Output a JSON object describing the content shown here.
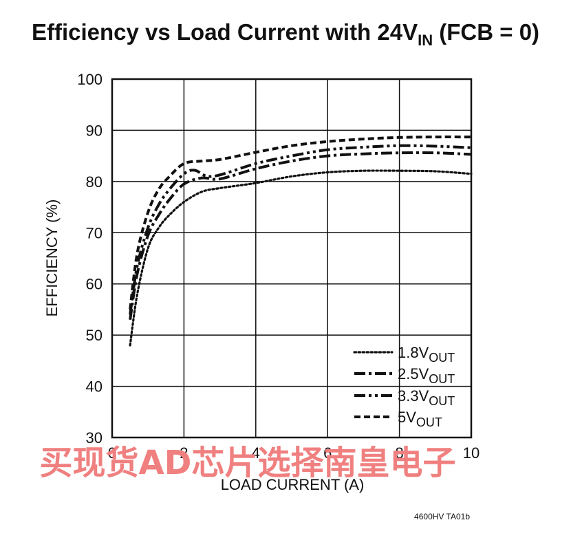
{
  "chart_data": {
    "type": "line",
    "title": "Efficiency vs Load Current with 24V",
    "title_subscript": "IN",
    "title_suffix": " (FCB = 0)",
    "xlabel": "LOAD CURRENT (A)",
    "ylabel": "EFFICIENCY (%)",
    "xlim": [
      0,
      10
    ],
    "ylim": [
      30,
      100
    ],
    "xticks": [
      0,
      2,
      4,
      6,
      8,
      10
    ],
    "yticks": [
      30,
      40,
      50,
      60,
      70,
      80,
      90,
      100
    ],
    "grid": true,
    "legend_position": "bottom-right",
    "series": [
      {
        "name": "1.8V",
        "subscript": "OUT",
        "style": "dotted",
        "x": [
          0.5,
          0.7,
          1.0,
          1.3,
          1.6,
          2.0,
          2.5,
          3.0,
          4.0,
          5.0,
          6.0,
          7.0,
          8.0,
          9.0,
          10.0
        ],
        "y": [
          48,
          58,
          67,
          71,
          73.5,
          76,
          78,
          78.7,
          79.7,
          81,
          81.8,
          82.1,
          82.1,
          82,
          81.5
        ]
      },
      {
        "name": "2.5V",
        "subscript": "OUT",
        "style": "dashdot",
        "x": [
          0.5,
          0.7,
          1.0,
          1.3,
          1.6,
          2.0,
          2.5,
          3.0,
          4.0,
          5.0,
          6.0,
          7.0,
          8.0,
          9.0,
          10.0
        ],
        "y": [
          53,
          62,
          69.5,
          73.5,
          76.5,
          79.5,
          80.7,
          80.5,
          82.5,
          84,
          85,
          85.4,
          85.6,
          85.6,
          85.3
        ]
      },
      {
        "name": "3.3V",
        "subscript": "OUT",
        "style": "dashdotdot",
        "x": [
          0.5,
          0.7,
          1.0,
          1.3,
          1.6,
          2.0,
          2.3,
          2.8,
          4.0,
          5.0,
          6.0,
          7.0,
          8.0,
          9.0,
          10.0
        ],
        "y": [
          54,
          63.5,
          71,
          75.5,
          78.5,
          81.5,
          82.2,
          81,
          83.5,
          85,
          86.2,
          86.7,
          87,
          86.9,
          86.6
        ]
      },
      {
        "name": "5V",
        "subscript": "OUT",
        "style": "dashed",
        "x": [
          0.5,
          0.7,
          1.0,
          1.3,
          1.6,
          2.0,
          2.5,
          3.0,
          4.0,
          5.0,
          6.0,
          7.0,
          8.0,
          9.0,
          10.0
        ],
        "y": [
          55,
          66,
          74,
          78.5,
          81,
          83.5,
          84,
          84.3,
          85.7,
          87,
          87.8,
          88.3,
          88.6,
          88.7,
          88.7
        ]
      }
    ],
    "figure_id": "4600HV TA01b"
  },
  "watermark": "买现货AD芯片选择南皇电子"
}
